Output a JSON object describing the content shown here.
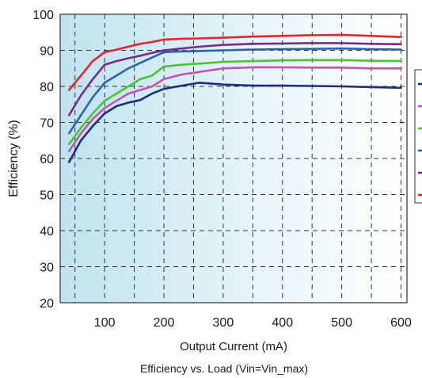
{
  "chart_data": {
    "type": "line",
    "title": "",
    "caption": "Efficiency vs. Load (Vin=Vin_max)",
    "xlabel": "Output Current (mA)",
    "ylabel": "Efficiency (%)",
    "xlim": [
      25,
      610
    ],
    "ylim": [
      20,
      100
    ],
    "x_ticks": [
      100,
      200,
      300,
      400,
      500,
      600
    ],
    "y_ticks": [
      20,
      30,
      40,
      50,
      60,
      70,
      80,
      90,
      100
    ],
    "grid": true,
    "legend": "right (entries truncated)",
    "series": [
      {
        "color": "#1f2d7a",
        "points": [
          [
            40,
            59
          ],
          [
            60,
            65
          ],
          [
            80,
            69
          ],
          [
            100,
            72.5
          ],
          [
            120,
            74.5
          ],
          [
            140,
            75.5
          ],
          [
            160,
            76.2
          ],
          [
            180,
            78
          ],
          [
            200,
            79.3
          ],
          [
            230,
            80.2
          ],
          [
            260,
            81
          ],
          [
            300,
            80.5
          ],
          [
            350,
            80.2
          ],
          [
            400,
            80.2
          ],
          [
            450,
            80.1
          ],
          [
            500,
            80
          ],
          [
            550,
            79.8
          ],
          [
            600,
            79.6
          ]
        ]
      },
      {
        "color": "#c254b6",
        "points": [
          [
            40,
            62
          ],
          [
            60,
            67
          ],
          [
            80,
            71
          ],
          [
            100,
            74
          ],
          [
            120,
            76
          ],
          [
            140,
            78
          ],
          [
            160,
            79
          ],
          [
            180,
            80
          ],
          [
            200,
            82
          ],
          [
            230,
            83.3
          ],
          [
            260,
            84
          ],
          [
            300,
            85
          ],
          [
            350,
            85.3
          ],
          [
            400,
            85.3
          ],
          [
            450,
            85.2
          ],
          [
            500,
            85.2
          ],
          [
            550,
            85
          ],
          [
            600,
            85
          ]
        ]
      },
      {
        "color": "#4cc236",
        "points": [
          [
            40,
            64
          ],
          [
            60,
            68.5
          ],
          [
            80,
            72.5
          ],
          [
            100,
            76
          ],
          [
            120,
            78
          ],
          [
            140,
            80
          ],
          [
            160,
            82
          ],
          [
            180,
            83
          ],
          [
            200,
            85.5
          ],
          [
            230,
            86
          ],
          [
            260,
            86.3
          ],
          [
            300,
            86.8
          ],
          [
            350,
            87
          ],
          [
            400,
            87.2
          ],
          [
            450,
            87.3
          ],
          [
            500,
            87.3
          ],
          [
            550,
            87.1
          ],
          [
            600,
            87
          ]
        ]
      },
      {
        "color": "#2a63ad",
        "points": [
          [
            40,
            67
          ],
          [
            60,
            72
          ],
          [
            80,
            77
          ],
          [
            100,
            81
          ],
          [
            120,
            83
          ],
          [
            140,
            85
          ],
          [
            160,
            86.5
          ],
          [
            180,
            88
          ],
          [
            200,
            89.5
          ],
          [
            230,
            89.7
          ],
          [
            260,
            89.8
          ],
          [
            300,
            90
          ],
          [
            350,
            90.2
          ],
          [
            400,
            90.3
          ],
          [
            450,
            90.4
          ],
          [
            500,
            90.5
          ],
          [
            550,
            90.3
          ],
          [
            600,
            90.2
          ]
        ]
      },
      {
        "color": "#7b2a8c",
        "points": [
          [
            40,
            72
          ],
          [
            60,
            77.5
          ],
          [
            80,
            82
          ],
          [
            100,
            86
          ],
          [
            120,
            87
          ],
          [
            140,
            87.8
          ],
          [
            160,
            88.5
          ],
          [
            180,
            89.3
          ],
          [
            200,
            90
          ],
          [
            230,
            90.5
          ],
          [
            260,
            91
          ],
          [
            300,
            91.5
          ],
          [
            350,
            91.8
          ],
          [
            400,
            91.9
          ],
          [
            450,
            92
          ],
          [
            500,
            92
          ],
          [
            550,
            91.8
          ],
          [
            600,
            91.7
          ]
        ]
      },
      {
        "color": "#e8232e",
        "points": [
          [
            40,
            79
          ],
          [
            60,
            83
          ],
          [
            80,
            87
          ],
          [
            100,
            89.5
          ],
          [
            120,
            90.2
          ],
          [
            140,
            91
          ],
          [
            160,
            91.8
          ],
          [
            180,
            92.3
          ],
          [
            200,
            93
          ],
          [
            230,
            93.2
          ],
          [
            260,
            93.3
          ],
          [
            300,
            93.5
          ],
          [
            350,
            93.8
          ],
          [
            400,
            94
          ],
          [
            450,
            94.2
          ],
          [
            500,
            94.3
          ],
          [
            550,
            94
          ],
          [
            600,
            93.7
          ]
        ]
      }
    ]
  }
}
